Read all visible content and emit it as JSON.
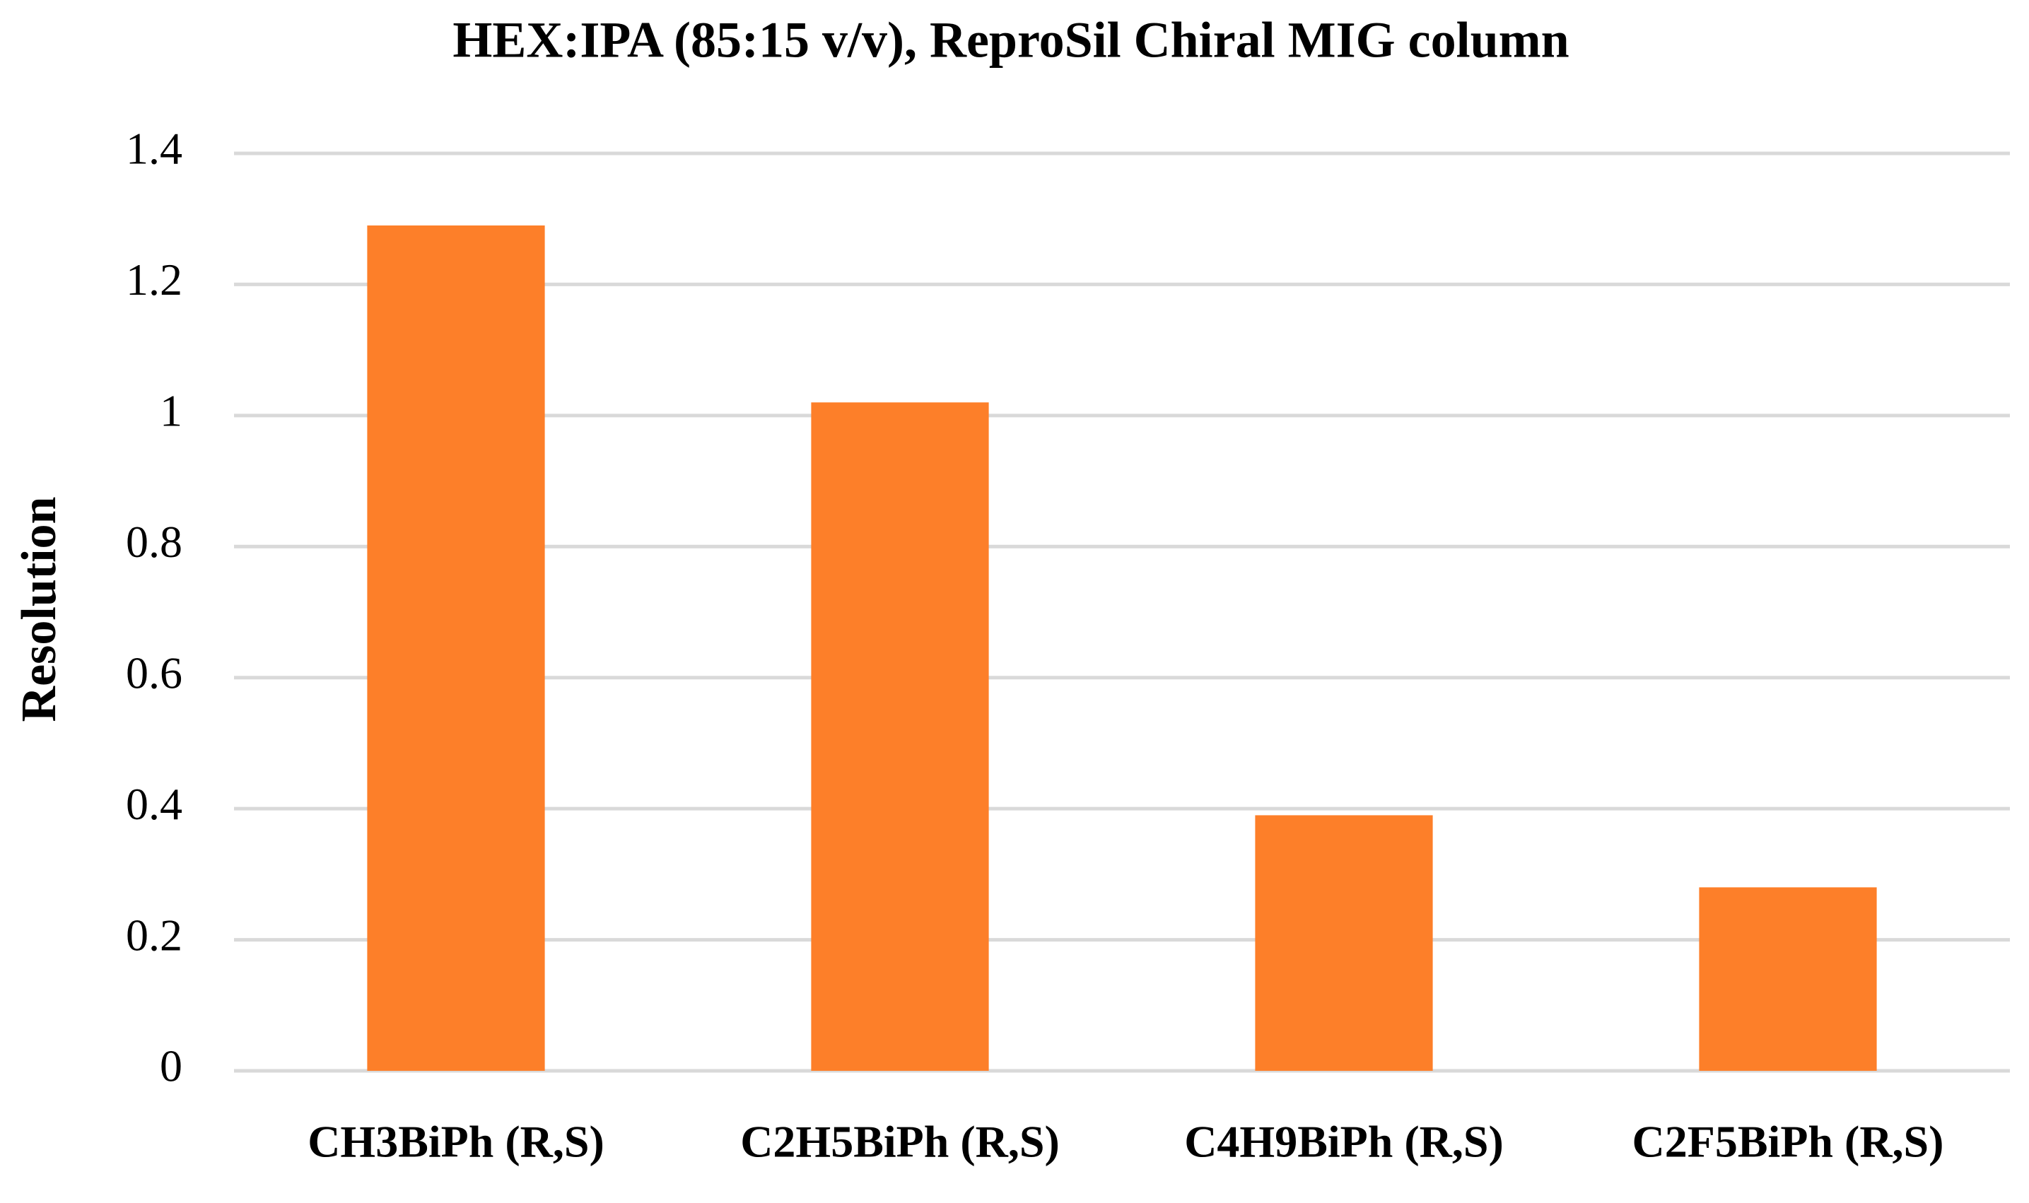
{
  "chart_data": {
    "type": "bar",
    "title": "HEX:IPA (85:15 v/v), ReproSil Chiral MIG column",
    "ylabel": "Resolution",
    "categories": [
      "CH3BiPh (R,S)",
      "C2H5BiPh (R,S)",
      "C4H9BiPh (R,S)",
      "C2F5BiPh (R,S)"
    ],
    "values": [
      1.29,
      1.02,
      0.39,
      0.28
    ],
    "color": "#fd7f29",
    "ylim": [
      0,
      1.4
    ],
    "yticks": [
      0,
      0.2,
      0.4,
      0.6,
      0.8,
      1,
      1.2,
      1.4
    ],
    "grid": true
  }
}
